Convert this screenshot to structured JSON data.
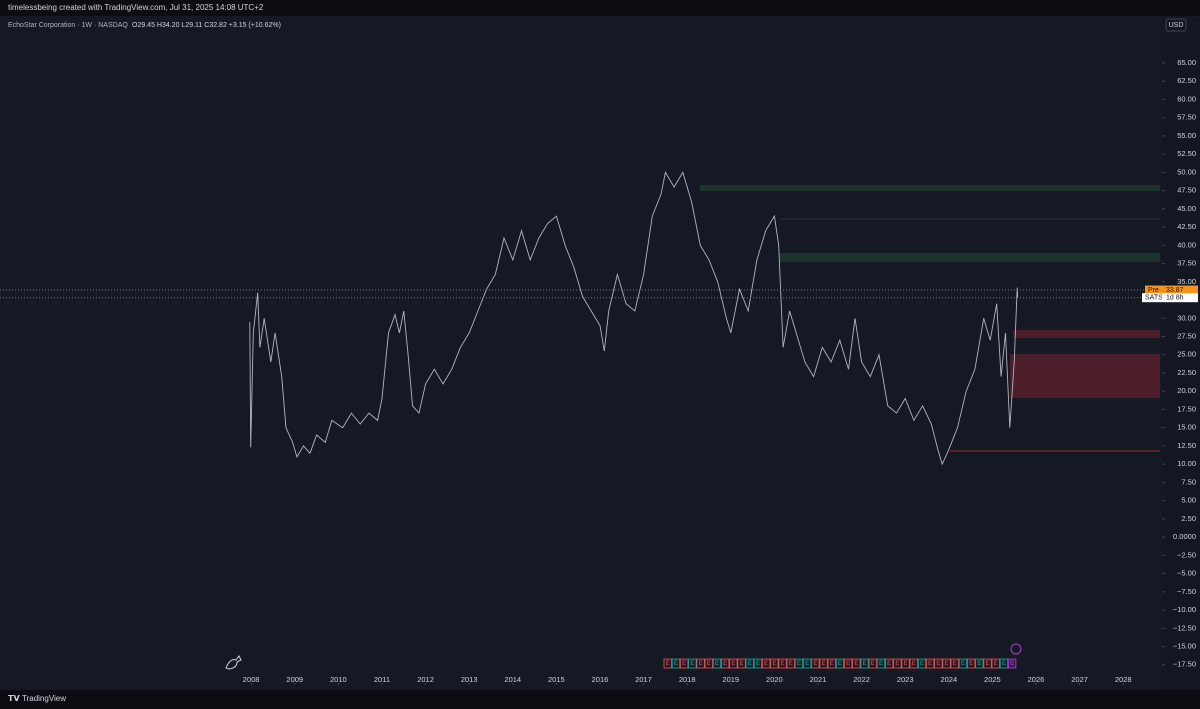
{
  "header": {
    "attribution": "timelessbeing created with TradingView.com, Jul 31, 2025 14:08 UTC+2"
  },
  "chart_data": {
    "type": "line",
    "title": "EchoStar Corporation · 1W · NASDAQ",
    "ohlc": "O29.45 H34.20 L29.11 C32.82 +3.15 (+10.62%)",
    "currency": "USD",
    "color": "#b2b5be",
    "x": [
      2007.97,
      2007.99,
      2008.05,
      2008.15,
      2008.2,
      2008.3,
      2008.45,
      2008.55,
      2008.7,
      2008.8,
      2008.95,
      2009.05,
      2009.2,
      2009.35,
      2009.5,
      2009.7,
      2009.85,
      2010.1,
      2010.3,
      2010.5,
      2010.7,
      2010.9,
      2011.0,
      2011.15,
      2011.3,
      2011.4,
      2011.5,
      2011.6,
      2011.7,
      2011.85,
      2012.0,
      2012.2,
      2012.4,
      2012.6,
      2012.8,
      2013.0,
      2013.2,
      2013.4,
      2013.6,
      2013.8,
      2014.0,
      2014.2,
      2014.4,
      2014.6,
      2014.8,
      2015.0,
      2015.2,
      2015.4,
      2015.6,
      2015.8,
      2016.0,
      2016.1,
      2016.2,
      2016.4,
      2016.6,
      2016.8,
      2017.0,
      2017.2,
      2017.4,
      2017.5,
      2017.7,
      2017.9,
      2018.1,
      2018.3,
      2018.5,
      2018.7,
      2018.9,
      2019.0,
      2019.2,
      2019.4,
      2019.6,
      2019.8,
      2020.0,
      2020.1,
      2020.2,
      2020.35,
      2020.5,
      2020.7,
      2020.9,
      2021.1,
      2021.3,
      2021.5,
      2021.7,
      2021.85,
      2022.0,
      2022.2,
      2022.4,
      2022.6,
      2022.8,
      2023.0,
      2023.2,
      2023.4,
      2023.6,
      2023.75,
      2023.85,
      2024.0,
      2024.2,
      2024.4,
      2024.6,
      2024.8,
      2024.95,
      2025.1,
      2025.2,
      2025.3,
      2025.4,
      2025.5,
      2025.57,
      2025.58
    ],
    "values": [
      29.5,
      12.3,
      28,
      33.5,
      26,
      30,
      24,
      28,
      22,
      15,
      13,
      11,
      12.5,
      11.5,
      14,
      13,
      16,
      15,
      17,
      15.5,
      17,
      16,
      19,
      28,
      30.5,
      28,
      31,
      25,
      18,
      17,
      21,
      23,
      21,
      23,
      26,
      28,
      31,
      34,
      36,
      41,
      38,
      42,
      38,
      41,
      43,
      44,
      40,
      37,
      33,
      31,
      29,
      25.5,
      31,
      36,
      32,
      31,
      36,
      44,
      47,
      50,
      48,
      50,
      46,
      40,
      38,
      35,
      30,
      28,
      34,
      31,
      38,
      42,
      44,
      40,
      26,
      31,
      28,
      24,
      22,
      26,
      24,
      27,
      23,
      30,
      24,
      22,
      25,
      18,
      17,
      19,
      16,
      18,
      15.5,
      12,
      10,
      12,
      15,
      20,
      23,
      30,
      27,
      32,
      22,
      28,
      15,
      24,
      34.2,
      32.82
    ],
    "xlim": [
      2002.24,
      2028.89
    ],
    "xticks": [
      2008,
      2009,
      2010,
      2011,
      2012,
      2013,
      2014,
      2015,
      2016,
      2017,
      2018,
      2019,
      2020,
      2021,
      2022,
      2023,
      2024,
      2025,
      2026,
      2027,
      2028
    ],
    "ylim": [
      -20,
      71.3
    ],
    "yticks": [
      {
        "value": 65,
        "label": "65.00"
      },
      {
        "value": 62.5,
        "label": "62.50"
      },
      {
        "value": 60,
        "label": "60.00"
      },
      {
        "value": 57.5,
        "label": "57.50"
      },
      {
        "value": 55,
        "label": "55.00"
      },
      {
        "value": 52.5,
        "label": "52.50"
      },
      {
        "value": 50,
        "label": "50.00"
      },
      {
        "value": 47.5,
        "label": "47.50"
      },
      {
        "value": 45,
        "label": "45.00"
      },
      {
        "value": 42.5,
        "label": "42.50"
      },
      {
        "value": 40,
        "label": "40.00"
      },
      {
        "value": 37.5,
        "label": "37.50"
      },
      {
        "value": 35,
        "label": "35.00"
      },
      {
        "value": 32.5,
        "label": "32.50"
      },
      {
        "value": 30,
        "label": "30.00"
      },
      {
        "value": 27.5,
        "label": "27.50"
      },
      {
        "value": 25,
        "label": "25.00"
      },
      {
        "value": 22.5,
        "label": "22.50"
      },
      {
        "value": 20,
        "label": "20.00"
      },
      {
        "value": 17.5,
        "label": "17.50"
      },
      {
        "value": 15,
        "label": "15.00"
      },
      {
        "value": 12.5,
        "label": "12.50"
      },
      {
        "value": 10,
        "label": "10.00"
      },
      {
        "value": 7.5,
        "label": "7.50"
      },
      {
        "value": 5,
        "label": "5.00"
      },
      {
        "value": 2.5,
        "label": "2.50"
      },
      {
        "value": 0,
        "label": "0.0000"
      },
      {
        "value": -2.5,
        "label": "−2.50"
      },
      {
        "value": -5,
        "label": "−5.00"
      },
      {
        "value": -7.5,
        "label": "−7.50"
      },
      {
        "value": -10,
        "label": "−10.00"
      },
      {
        "value": -12.5,
        "label": "−12.50"
      },
      {
        "value": -15,
        "label": "−15.00"
      },
      {
        "value": -17.5,
        "label": "−17.50"
      }
    ],
    "pre_label": "Pre",
    "pre_price": 33.87,
    "pre_price_label": "33.87",
    "symbol": "SATS",
    "countdown": "1d 8h",
    "last_price": 32.82,
    "earnings": [
      "E",
      "E",
      "E",
      "E",
      "E",
      "E",
      "E",
      "E",
      "E",
      "E",
      "E",
      "E",
      "E",
      "E",
      "E",
      "E",
      "E",
      "E",
      "E",
      "E",
      "E",
      "E",
      "E",
      "E",
      "E",
      "E",
      "E",
      "E",
      "E",
      "E",
      "E",
      "E",
      "E",
      "E",
      "E",
      "E",
      "E",
      "E",
      "E",
      "E",
      "E",
      "E",
      "E"
    ]
  },
  "footer": {
    "brand": "TradingView"
  }
}
